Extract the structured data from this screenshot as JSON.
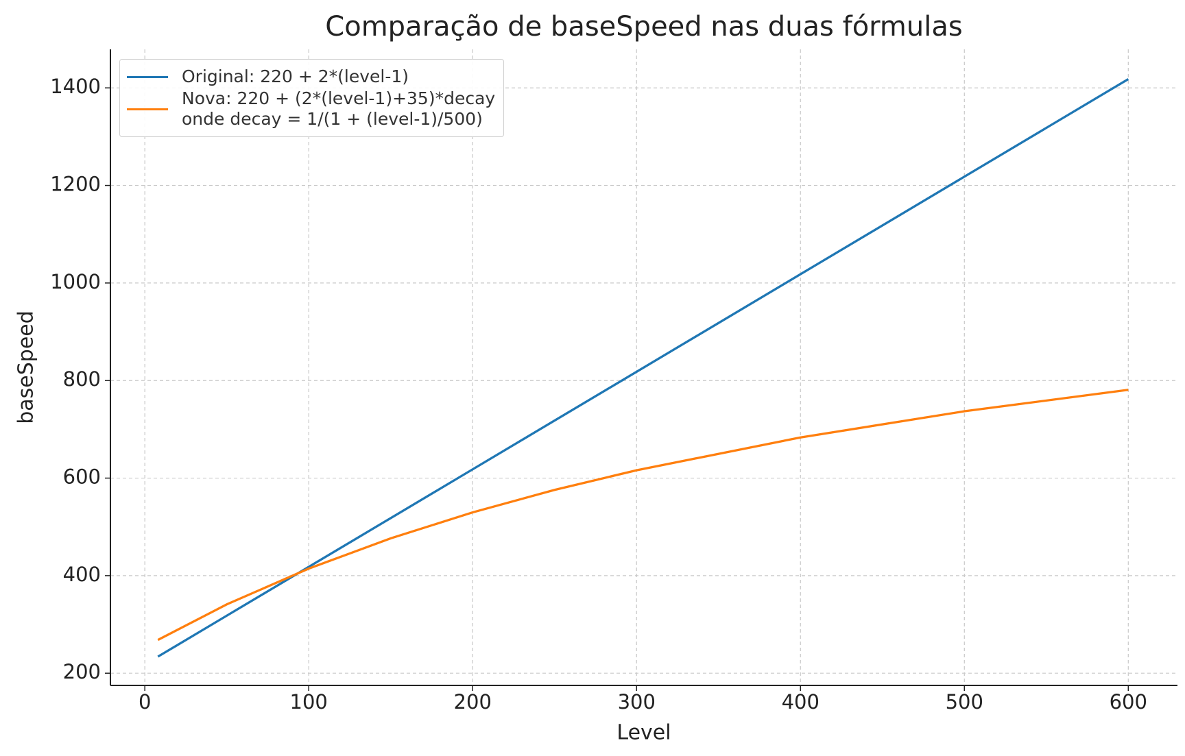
{
  "chart_data": {
    "type": "line",
    "title": "Comparação de baseSpeed nas duas fórmulas",
    "x_label": "Level",
    "y_label": "baseSpeed",
    "x": [
      8,
      50,
      100,
      150,
      200,
      250,
      300,
      400,
      500,
      600
    ],
    "series": [
      {
        "name": "Original: 220 + 2*(level-1)",
        "color": "#1f77b4",
        "values": [
          234,
          318,
          418,
          518,
          618,
          718,
          818,
          1018,
          1218,
          1418
        ]
      },
      {
        "name": "Nova: 220 + (2*(level-1)+35)*decay\nonde decay = 1/(1 + (level-1)/500)",
        "color": "#ff7f0e",
        "values": [
          268.3,
          341.1,
          414.5,
          476.5,
          529.7,
          575.8,
          616.1,
          683.3,
          737,
          781
        ]
      }
    ],
    "xlim": [
      -21,
      630
    ],
    "ylim": [
      175,
      1479
    ],
    "xticks": [
      0,
      100,
      200,
      300,
      400,
      500,
      600
    ],
    "yticks": [
      200,
      400,
      600,
      800,
      1000,
      1200,
      1400
    ],
    "grid": true,
    "legend": "upper left"
  }
}
